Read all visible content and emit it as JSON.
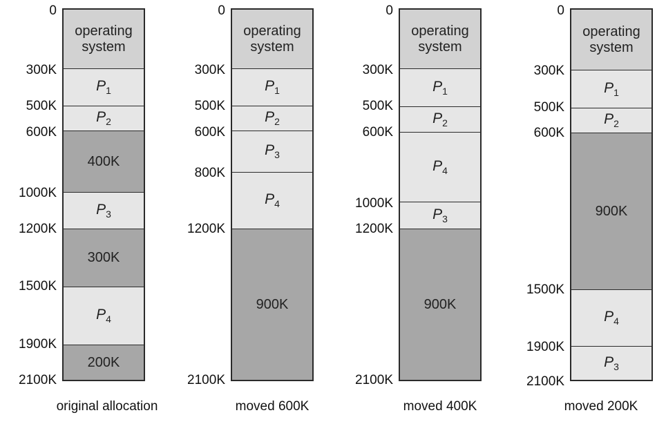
{
  "columns": [
    {
      "caption": "original allocation",
      "addresses": [
        "0",
        "300K",
        "500K",
        "600K",
        "1000K",
        "1200K",
        "1500K",
        "1900K",
        "2100K"
      ],
      "segments": [
        {
          "kind": "os",
          "label": "operating\nsystem"
        },
        {
          "kind": "proc",
          "label": "P1"
        },
        {
          "kind": "proc",
          "label": "P2"
        },
        {
          "kind": "hole",
          "label": "400K"
        },
        {
          "kind": "proc",
          "label": "P3"
        },
        {
          "kind": "hole",
          "label": "300K"
        },
        {
          "kind": "proc",
          "label": "P4"
        },
        {
          "kind": "hole",
          "label": "200K"
        }
      ]
    },
    {
      "caption": "moved 600K",
      "addresses": [
        "0",
        "300K",
        "500K",
        "600K",
        "800K",
        "1200K",
        "2100K"
      ],
      "segments": [
        {
          "kind": "os",
          "label": "operating\nsystem"
        },
        {
          "kind": "proc",
          "label": "P1"
        },
        {
          "kind": "proc",
          "label": "P2"
        },
        {
          "kind": "proc",
          "label": "P3"
        },
        {
          "kind": "proc",
          "label": "P4"
        },
        {
          "kind": "hole",
          "label": "900K"
        }
      ]
    },
    {
      "caption": "moved 400K",
      "addresses": [
        "0",
        "300K",
        "500K",
        "600K",
        "1000K",
        "1200K",
        "2100K"
      ],
      "segments": [
        {
          "kind": "os",
          "label": "operating\nsystem"
        },
        {
          "kind": "proc",
          "label": "P1"
        },
        {
          "kind": "proc",
          "label": "P2"
        },
        {
          "kind": "proc",
          "label": "P4"
        },
        {
          "kind": "proc",
          "label": "P3"
        },
        {
          "kind": "hole",
          "label": "900K"
        }
      ]
    },
    {
      "caption": "moved 200K",
      "addresses": [
        "0",
        "300K",
        "500K",
        "600K",
        "1500K",
        "1900K",
        "2100K"
      ],
      "segments": [
        {
          "kind": "os",
          "label": "operating\nsystem"
        },
        {
          "kind": "proc",
          "label": "P1"
        },
        {
          "kind": "proc",
          "label": "P2"
        },
        {
          "kind": "hole",
          "label": "900K"
        },
        {
          "kind": "proc",
          "label": "P4"
        },
        {
          "kind": "proc",
          "label": "P3"
        }
      ]
    }
  ]
}
